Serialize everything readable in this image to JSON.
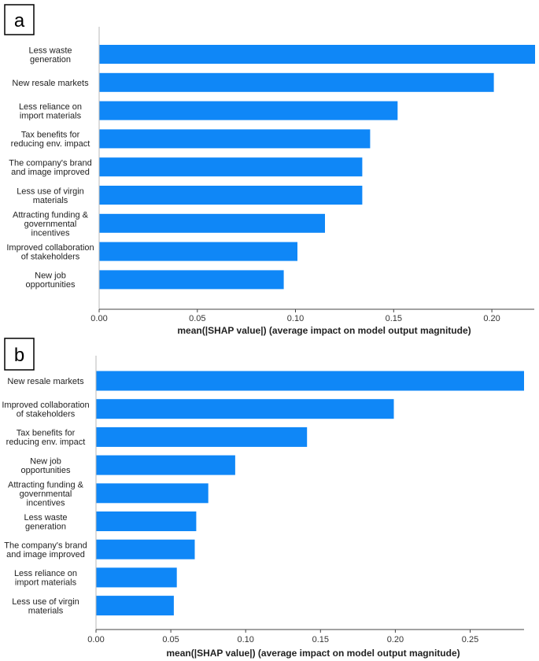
{
  "chart_data": [
    {
      "panel": "a",
      "type": "bar",
      "orientation": "horizontal",
      "title": "",
      "xlabel": "mean(|SHAP value|) (average impact on model output magnitude)",
      "ylabel": "",
      "xlim": [
        0,
        0.222
      ],
      "xticks": [
        "0.00",
        "0.05",
        "0.10",
        "0.15",
        "0.20"
      ],
      "xtick_values": [
        0,
        0.05,
        0.1,
        0.15,
        0.2
      ],
      "color": "#0f87f7",
      "categories": [
        [
          "Less waste",
          "generation"
        ],
        [
          "New resale markets"
        ],
        [
          "Less reliance on",
          "import materials"
        ],
        [
          "Tax benefits for",
          "reducing env. impact"
        ],
        [
          "The company's brand",
          "and image improved"
        ],
        [
          "Less use of virgin",
          "materials"
        ],
        [
          "Attracting funding &",
          "governmental",
          "incentives"
        ],
        [
          "Improved collaboration",
          "of stakeholders"
        ],
        [
          "New job",
          "opportunities"
        ]
      ],
      "values": [
        0.222,
        0.201,
        0.152,
        0.138,
        0.134,
        0.134,
        0.115,
        0.101,
        0.094
      ]
    },
    {
      "panel": "b",
      "type": "bar",
      "orientation": "horizontal",
      "title": "",
      "xlabel": "mean(|SHAP value|) (average impact on model output magnitude)",
      "ylabel": "",
      "xlim": [
        0,
        0.286
      ],
      "xticks": [
        "0.00",
        "0.05",
        "0.10",
        "0.15",
        "0.20",
        "0.25"
      ],
      "xtick_values": [
        0,
        0.05,
        0.1,
        0.15,
        0.2,
        0.25
      ],
      "color": "#0f87f7",
      "categories": [
        [
          "New resale markets"
        ],
        [
          "Improved collaboration",
          "of stakeholders"
        ],
        [
          "Tax benefits for",
          "reducing env. impact"
        ],
        [
          "New job",
          "opportunities"
        ],
        [
          "Attracting funding &",
          "governmental",
          "incentives"
        ],
        [
          "Less waste",
          "generation"
        ],
        [
          "The company's brand",
          "and image improved"
        ],
        [
          "Less reliance on",
          "import materials"
        ],
        [
          "Less use of virgin",
          "materials"
        ]
      ],
      "values": [
        0.286,
        0.199,
        0.141,
        0.093,
        0.075,
        0.067,
        0.066,
        0.054,
        0.052
      ]
    }
  ]
}
